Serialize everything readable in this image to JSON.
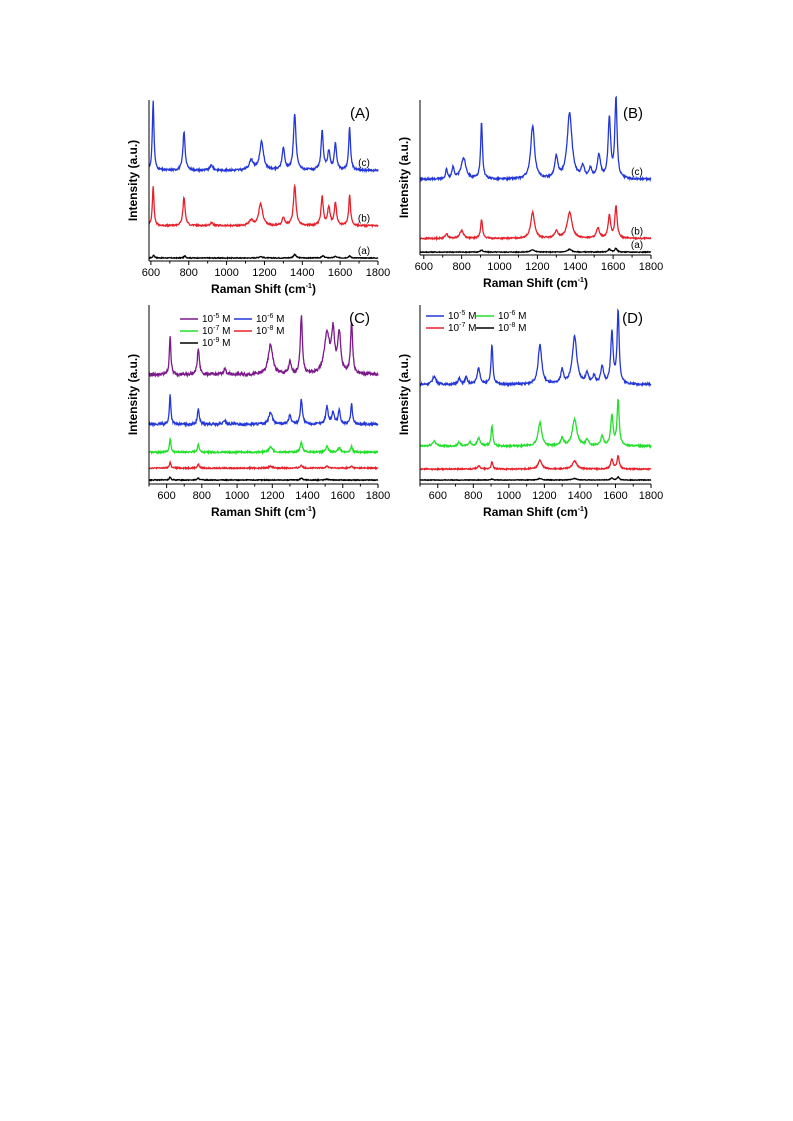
{
  "chart_data": [
    {
      "type": "line",
      "panel_label": "(A)",
      "xlabel": "Raman Shift (cm",
      "xlabel_sup": "-1",
      "xlabel_end": ")",
      "ylabel": "Intensity (a.u.)",
      "xlim": [
        590,
        1800
      ],
      "x_ticks": [
        600,
        800,
        1000,
        1200,
        1400,
        1600,
        1800
      ],
      "ylim": [
        0,
        160
      ],
      "grid": false,
      "legend": "none",
      "series": [
        {
          "name": "(a)",
          "color": "#000000",
          "baseline": 3,
          "noise": 0.4,
          "peaks": [
            [
              615,
              3,
              5
            ],
            [
              780,
              2,
              6
            ],
            [
              1180,
              1.5,
              10
            ],
            [
              1360,
              3.5,
              8
            ],
            [
              1510,
              2,
              8
            ],
            [
              1575,
              1.5,
              8
            ],
            [
              1650,
              2,
              7
            ]
          ]
        },
        {
          "name": "(b)",
          "color": "#e8202a",
          "baseline": 35,
          "noise": 0.8,
          "peaks": [
            [
              612,
              40,
              5
            ],
            [
              775,
              28,
              7
            ],
            [
              920,
              3,
              8
            ],
            [
              1130,
              5,
              12
            ],
            [
              1180,
              22,
              12
            ],
            [
              1300,
              8,
              8
            ],
            [
              1360,
              40,
              8
            ],
            [
              1505,
              28,
              7
            ],
            [
              1540,
              18,
              8
            ],
            [
              1575,
              22,
              7
            ],
            [
              1650,
              30,
              6
            ]
          ]
        },
        {
          "name": "(c)",
          "color": "#2437d8",
          "baseline": 90,
          "noise": 1.0,
          "peaks": [
            [
              612,
              70,
              5
            ],
            [
              775,
              38,
              7
            ],
            [
              920,
              5,
              10
            ],
            [
              1130,
              10,
              12
            ],
            [
              1185,
              28,
              12
            ],
            [
              1300,
              22,
              8
            ],
            [
              1360,
              55,
              8
            ],
            [
              1505,
              38,
              7
            ],
            [
              1540,
              18,
              8
            ],
            [
              1575,
              26,
              7
            ],
            [
              1650,
              42,
              6
            ]
          ]
        }
      ]
    },
    {
      "type": "line",
      "panel_label": "(B)",
      "xlabel": "Raman Shift (cm",
      "xlabel_sup": "-1",
      "xlabel_end": ")",
      "ylabel": "Intensity (a.u.)",
      "xlim": [
        580,
        1800
      ],
      "x_ticks": [
        600,
        800,
        1000,
        1200,
        1400,
        1600,
        1800
      ],
      "ylim": [
        0,
        160
      ],
      "grid": false,
      "legend": "none",
      "series": [
        {
          "name": "(a)",
          "color": "#000000",
          "baseline": 3,
          "noise": 0.4,
          "peaks": [
            [
              905,
              2,
              8
            ],
            [
              1175,
              2.5,
              12
            ],
            [
              1370,
              3,
              12
            ],
            [
              1580,
              3,
              8
            ],
            [
              1615,
              4,
              7
            ]
          ]
        },
        {
          "name": "(b)",
          "color": "#e8202a",
          "baseline": 17,
          "noise": 0.7,
          "peaks": [
            [
              720,
              5,
              8
            ],
            [
              800,
              8,
              12
            ],
            [
              905,
              20,
              6
            ],
            [
              1175,
              27,
              12
            ],
            [
              1300,
              7,
              10
            ],
            [
              1370,
              27,
              15
            ],
            [
              1520,
              10,
              10
            ],
            [
              1580,
              23,
              8
            ],
            [
              1615,
              33,
              7
            ]
          ]
        },
        {
          "name": "(c)",
          "color": "#2437d8",
          "baseline": 78,
          "noise": 1.0,
          "peaks": [
            [
              720,
              10,
              6
            ],
            [
              755,
              12,
              7
            ],
            [
              810,
              22,
              15
            ],
            [
              905,
              58,
              6
            ],
            [
              1175,
              55,
              12
            ],
            [
              1300,
              22,
              10
            ],
            [
              1370,
              68,
              15
            ],
            [
              1440,
              12,
              10
            ],
            [
              1480,
              10,
              8
            ],
            [
              1525,
              24,
              10
            ],
            [
              1580,
              62,
              8
            ],
            [
              1615,
              82,
              7
            ]
          ]
        }
      ]
    },
    {
      "type": "line",
      "panel_label": "(C)",
      "xlabel": "Raman Shift (cm",
      "xlabel_sup": "-1",
      "xlabel_end": ")",
      "ylabel": "Intensity (a.u.)",
      "xlim": [
        500,
        1800
      ],
      "x_ticks": [
        600,
        800,
        1000,
        1200,
        1400,
        1600,
        1800
      ],
      "ylim": [
        0,
        180
      ],
      "grid": false,
      "legend": "top-left",
      "series": [
        {
          "name": "10",
          "sup": "-5",
          "unit": " M",
          "color": "#7b1a8a",
          "baseline": 110,
          "noise": 1.6,
          "peaks": [
            [
              620,
              40,
              5
            ],
            [
              780,
              26,
              7
            ],
            [
              930,
              6,
              8
            ],
            [
              1190,
              30,
              15
            ],
            [
              1300,
              12,
              8
            ],
            [
              1365,
              58,
              7
            ],
            [
              1510,
              40,
              18
            ],
            [
              1545,
              40,
              10
            ],
            [
              1580,
              40,
              10
            ],
            [
              1650,
              52,
              7
            ]
          ]
        },
        {
          "name": "10",
          "sup": "-6",
          "unit": " M",
          "color": "#2437d8",
          "baseline": 60,
          "noise": 1.2,
          "peaks": [
            [
              620,
              30,
              5
            ],
            [
              780,
              16,
              6
            ],
            [
              930,
              4,
              8
            ],
            [
              1190,
              12,
              12
            ],
            [
              1300,
              9,
              8
            ],
            [
              1365,
              25,
              7
            ],
            [
              1510,
              18,
              8
            ],
            [
              1545,
              12,
              8
            ],
            [
              1580,
              14,
              7
            ],
            [
              1650,
              20,
              6
            ]
          ]
        },
        {
          "name": "10",
          "sup": "-7",
          "unit": " M",
          "color": "#22e02a",
          "baseline": 32,
          "noise": 0.8,
          "peaks": [
            [
              620,
              14,
              5
            ],
            [
              780,
              8,
              6
            ],
            [
              1190,
              5,
              12
            ],
            [
              1365,
              10,
              7
            ],
            [
              1510,
              6,
              8
            ],
            [
              1580,
              5,
              7
            ],
            [
              1650,
              6,
              6
            ]
          ]
        },
        {
          "name": "10",
          "sup": "-8",
          "unit": " M",
          "color": "#e8202a",
          "baseline": 16,
          "noise": 0.6,
          "peaks": [
            [
              620,
              6,
              5
            ],
            [
              780,
              4,
              6
            ],
            [
              1190,
              2,
              10
            ],
            [
              1365,
              3,
              7
            ],
            [
              1510,
              2,
              8
            ],
            [
              1650,
              2,
              6
            ]
          ]
        },
        {
          "name": "10",
          "sup": "-9",
          "unit": " M",
          "color": "#000000",
          "baseline": 4,
          "noise": 0.4,
          "peaks": [
            [
              620,
              3,
              5
            ],
            [
              780,
              2,
              6
            ],
            [
              1365,
              2,
              7
            ],
            [
              1510,
              1,
              8
            ]
          ]
        }
      ]
    },
    {
      "type": "line",
      "panel_label": "(D)",
      "xlabel": "Raman Shift (cm",
      "xlabel_sup": "-1",
      "xlabel_end": ")",
      "ylabel": "Intensity (a.u.)",
      "xlim": [
        500,
        1800
      ],
      "x_ticks": [
        600,
        800,
        1000,
        1200,
        1400,
        1600,
        1800
      ],
      "ylim": [
        0,
        180
      ],
      "grid": false,
      "legend": "top-left",
      "series": [
        {
          "name": "10",
          "sup": "-5",
          "unit": " M",
          "color": "#2437d8",
          "baseline": 100,
          "noise": 1.0,
          "peaks": [
            [
              580,
              8,
              12
            ],
            [
              720,
              6,
              8
            ],
            [
              760,
              7,
              8
            ],
            [
              830,
              16,
              10
            ],
            [
              905,
              40,
              6
            ],
            [
              1175,
              40,
              12
            ],
            [
              1300,
              14,
              9
            ],
            [
              1370,
              48,
              15
            ],
            [
              1440,
              10,
              10
            ],
            [
              1480,
              8,
              8
            ],
            [
              1525,
              18,
              9
            ],
            [
              1580,
              52,
              8
            ],
            [
              1615,
              72,
              7
            ]
          ]
        },
        {
          "name": "10",
          "sup": "-6",
          "unit": " M",
          "color": "#22e02a",
          "baseline": 38,
          "noise": 0.8,
          "peaks": [
            [
              580,
              5,
              12
            ],
            [
              720,
              4,
              8
            ],
            [
              780,
              4,
              8
            ],
            [
              830,
              8,
              10
            ],
            [
              905,
              20,
              6
            ],
            [
              1175,
              24,
              12
            ],
            [
              1300,
              8,
              9
            ],
            [
              1370,
              27,
              15
            ],
            [
              1440,
              6,
              10
            ],
            [
              1525,
              10,
              9
            ],
            [
              1580,
              30,
              8
            ],
            [
              1615,
              46,
              7
            ]
          ]
        },
        {
          "name": "10",
          "sup": "-7",
          "unit": " M",
          "color": "#e8202a",
          "baseline": 15,
          "noise": 0.6,
          "peaks": [
            [
              830,
              3,
              10
            ],
            [
              905,
              7,
              6
            ],
            [
              1175,
              9,
              12
            ],
            [
              1370,
              8,
              15
            ],
            [
              1580,
              10,
              8
            ],
            [
              1615,
              13,
              7
            ]
          ]
        },
        {
          "name": "10",
          "sup": "-8",
          "unit": " M",
          "color": "#000000",
          "baseline": 4,
          "noise": 0.3,
          "peaks": [
            [
              905,
              1,
              6
            ],
            [
              1175,
              1.5,
              12
            ],
            [
              1370,
              1.5,
              15
            ],
            [
              1580,
              2,
              8
            ],
            [
              1615,
              3,
              7
            ]
          ]
        }
      ]
    }
  ]
}
